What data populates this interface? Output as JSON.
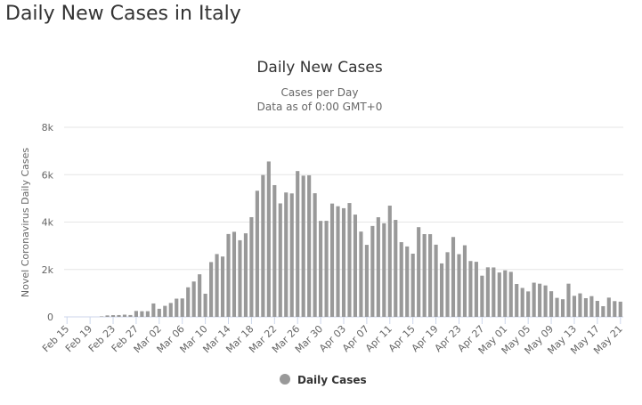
{
  "page_title": "Daily New Cases in Italy",
  "chart_data": {
    "type": "bar",
    "title": "Daily New Cases",
    "subtitle": [
      "Cases per Day",
      "Data as of 0:00 GMT+0"
    ],
    "y_label": "Novel Coronavirus Daily Cases",
    "categories": [
      "Feb 15",
      null,
      null,
      null,
      "Feb 19",
      null,
      null,
      null,
      "Feb 23",
      null,
      null,
      null,
      "Feb 27",
      null,
      null,
      null,
      "Mar 02",
      null,
      null,
      null,
      "Mar 06",
      null,
      null,
      null,
      "Mar 10",
      null,
      null,
      null,
      "Mar 14",
      null,
      null,
      null,
      "Mar 18",
      null,
      null,
      null,
      "Mar 22",
      null,
      null,
      null,
      "Mar 26",
      null,
      null,
      null,
      "Mar 30",
      null,
      null,
      null,
      "Apr 03",
      null,
      null,
      null,
      "Apr 07",
      null,
      null,
      null,
      "Apr 11",
      null,
      null,
      null,
      "Apr 15",
      null,
      null,
      null,
      "Apr 19",
      null,
      null,
      null,
      "Apr 23",
      null,
      null,
      null,
      "Apr 27",
      null,
      null,
      null,
      "May 01",
      null,
      null,
      null,
      "May 05",
      null,
      null,
      null,
      "May 09",
      null,
      null,
      null,
      "May 13",
      null,
      null,
      null,
      "May 17",
      null,
      null,
      null,
      "May 21"
    ],
    "series": [
      {
        "name": "Daily Cases",
        "color": "#999999",
        "values": [
          0,
          0,
          0,
          0,
          0,
          0,
          20,
          62,
          73,
          77,
          93,
          78,
          250,
          238,
          240,
          566,
          342,
          466,
          587,
          769,
          778,
          1247,
          1492,
          1797,
          977,
          2313,
          2651,
          2547,
          3497,
          3590,
          3233,
          3526,
          4207,
          5322,
          5986,
          6557,
          5560,
          4789,
          5249,
          5210,
          6153,
          5959,
          5974,
          5217,
          4050,
          4053,
          4782,
          4668,
          4585,
          4805,
          4316,
          3599,
          3039,
          3836,
          4204,
          3951,
          4694,
          4092,
          3153,
          2972,
          2667,
          3786,
          3493,
          3491,
          3047,
          2256,
          2729,
          3370,
          2646,
          3021,
          2357,
          2324,
          1739,
          2091,
          2086,
          1872,
          1965,
          1900,
          1389,
          1221,
          1075,
          1444,
          1401,
          1327,
          1083,
          802,
          744,
          1402,
          888,
          992,
          789,
          875,
          675,
          451,
          813,
          665,
          642
        ]
      }
    ],
    "ylim": [
      0,
      8000
    ],
    "yticks": [
      0,
      {
        "value": 2000,
        "label": "2k"
      },
      {
        "value": 4000,
        "label": "4k"
      },
      {
        "value": 6000,
        "label": "6k"
      },
      {
        "value": 8000,
        "label": "8k"
      }
    ],
    "grid": true
  }
}
